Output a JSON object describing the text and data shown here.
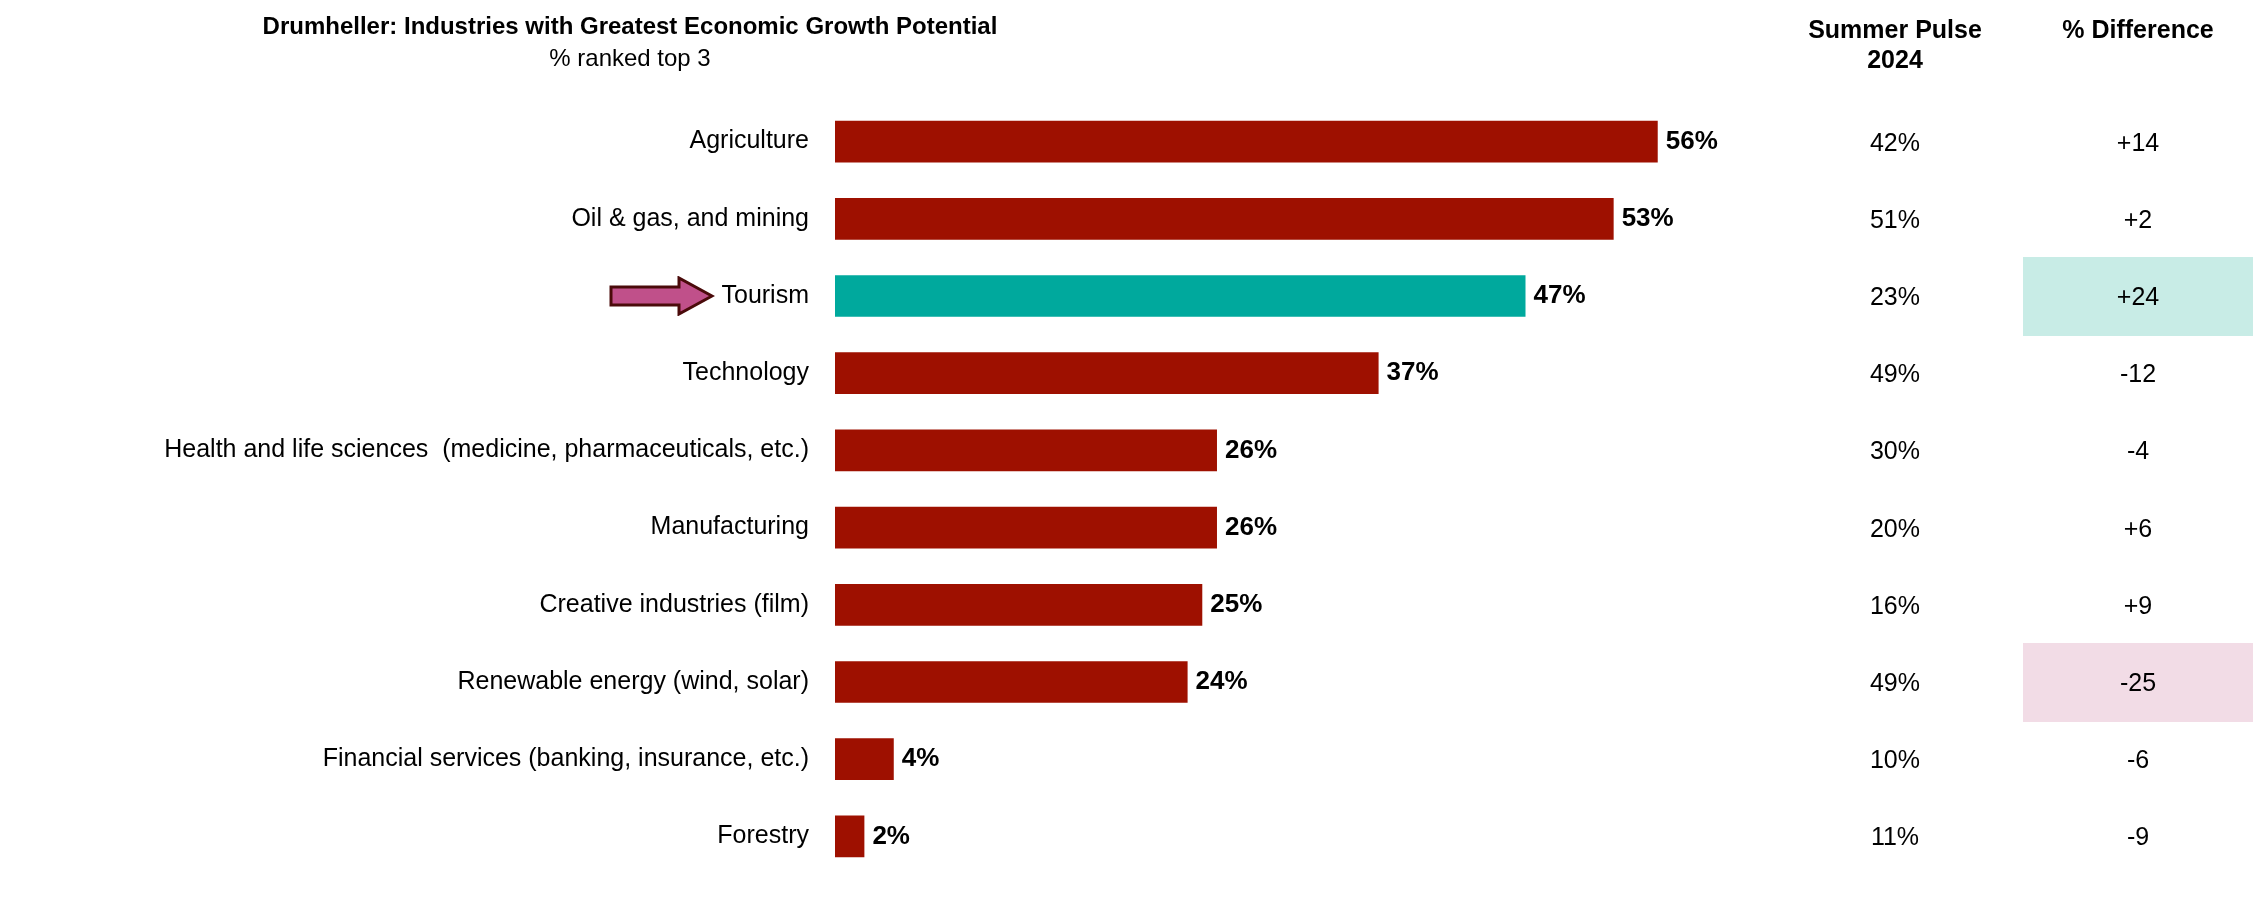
{
  "chart_data": [
    {
      "type": "bar",
      "orientation": "horizontal",
      "title": "Drumheller: Industries with Greatest Economic Growth Potential",
      "subtitle": "% ranked top 3",
      "categories": [
        "Agriculture",
        "Oil & gas, and mining",
        "Tourism",
        "Technology",
        "Health and life sciences  (medicine, pharmaceuticals, etc.)",
        "Manufacturing",
        "Creative industries (film)",
        "Renewable energy (wind, solar)",
        "Financial services (banking, insurance, etc.)",
        "Forestry"
      ],
      "values": [
        56,
        53,
        47,
        37,
        26,
        26,
        25,
        24,
        4,
        2
      ],
      "value_labels": [
        "56%",
        "53%",
        "47%",
        "37%",
        "26%",
        "26%",
        "25%",
        "24%",
        "4%",
        "2%"
      ],
      "colors": [
        "#9e1000",
        "#9e1000",
        "#00a99d",
        "#9e1000",
        "#9e1000",
        "#9e1000",
        "#9e1000",
        "#9e1000",
        "#9e1000",
        "#9e1000"
      ],
      "legend": false
    },
    {
      "type": "other",
      "title": "Summer Pulse 2024",
      "values": [
        42,
        51,
        23,
        49,
        30,
        20,
        16,
        49,
        10,
        11
      ],
      "value_labels": [
        "42%",
        "51%",
        "23%",
        "49%",
        "30%",
        "20%",
        "16%",
        "49%",
        "10%",
        "11%"
      ]
    },
    {
      "type": "other",
      "title": "% Difference",
      "values": [
        14,
        2,
        24,
        -12,
        -4,
        6,
        9,
        -25,
        -6,
        -9
      ],
      "value_labels": [
        "+14",
        "+2",
        "+24",
        "-12",
        "-4",
        "+6",
        "+9",
        "-25",
        "-6",
        "-9"
      ],
      "colors": [
        null,
        null,
        "#c8ece6",
        null,
        null,
        null,
        null,
        "#f2dce6",
        null,
        null
      ]
    }
  ]
}
